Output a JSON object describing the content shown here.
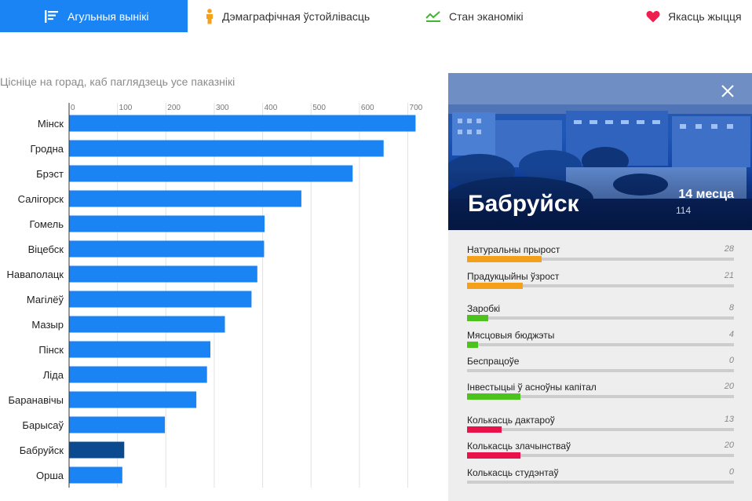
{
  "nav": {
    "tabs": [
      {
        "label": "Агульныя вынікі",
        "icon": "results-list-icon",
        "active": true
      },
      {
        "label": "Дэмаграфічная ўстойлівасць",
        "icon": "person-icon",
        "icon_color": "#f7a11a"
      },
      {
        "label": "Стан эканомікі",
        "icon": "trend-line-icon",
        "icon_color": "#3db82e"
      },
      {
        "label": "Якасць жыцця",
        "icon": "heart-icon",
        "icon_color": "#ee1e4e"
      }
    ]
  },
  "chart_title": "Цісніце на горад, каб паглядзець усе паказнікі",
  "chart_data": {
    "type": "bar",
    "orientation": "horizontal",
    "categories": [
      "Мінск",
      "Гродна",
      "Брэст",
      "Салігорск",
      "Гомель",
      "Віцебск",
      "Наваполацк",
      "Магілёў",
      "Мазыр",
      "Пінск",
      "Ліда",
      "Баранавічы",
      "Барысаў",
      "Бабруйск",
      "Орша"
    ],
    "values": [
      716,
      650,
      586,
      480,
      404,
      403,
      389,
      377,
      322,
      292,
      285,
      263,
      198,
      114,
      110
    ],
    "highlighted": "Бабруйск",
    "xlim": [
      0,
      740
    ],
    "xticks": [
      0,
      100,
      200,
      300,
      400,
      500,
      600,
      700
    ],
    "grid": "vertical",
    "colors": {
      "bar": "#1a84f5",
      "highlight": "#0b4a8f",
      "grid": "#e2e2e2",
      "axis": "#333333"
    }
  },
  "detail": {
    "city": "Бабруйск",
    "rank_label": "14 месца",
    "score": "114",
    "metrics": [
      {
        "label": "Натуральны прырост",
        "value": 28,
        "color": "#f5a01a"
      },
      {
        "label": "Прадукцыйны ўзрост",
        "value": 21,
        "color": "#f5a01a"
      },
      {
        "label": "Заробкі",
        "value": 8,
        "color": "#4cc21c"
      },
      {
        "label": "Мясцовыя бюджэты",
        "value": 4,
        "color": "#4cc21c"
      },
      {
        "label": "Беспрацоўе",
        "value": 0,
        "color": "#4cc21c"
      },
      {
        "label": "Інвестыцыі ў асноўны капітал",
        "value": 20,
        "color": "#4cc21c"
      },
      {
        "label": "Колькасць дактароў",
        "value": 13,
        "color": "#e8134a"
      },
      {
        "label": "Колькасць злачынстваў",
        "value": 20,
        "color": "#e8134a"
      },
      {
        "label": "Колькасць студэнтаў",
        "value": 0,
        "color": "#e8134a"
      }
    ],
    "metric_scale_max": 100
  }
}
